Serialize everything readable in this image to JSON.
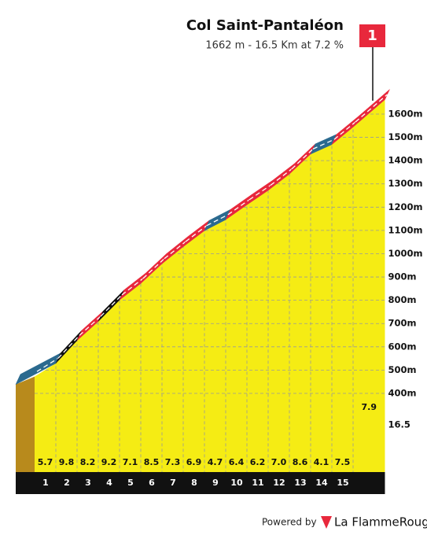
{
  "chart_data": {
    "type": "climb-profile",
    "title": "Col Saint-Pantaléon",
    "subtitle": "1662 m - 16.5 Km at 7.2 %",
    "flag": "1",
    "x": [
      0,
      1,
      2,
      3,
      4,
      5,
      6,
      7,
      8,
      9,
      10,
      11,
      12,
      13,
      14,
      15,
      16.5
    ],
    "values": [
      472,
      529,
      627,
      709,
      801,
      872,
      957,
      1030,
      1099,
      1146,
      1210,
      1272,
      1342,
      1428,
      1469,
      1544,
      1662
    ],
    "gradients": [
      5.7,
      9.8,
      8.2,
      9.2,
      7.1,
      8.5,
      7.3,
      6.9,
      4.7,
      6.4,
      6.2,
      7.0,
      8.6,
      4.1,
      7.5,
      7.9
    ],
    "gradient_labels": [
      "5.7",
      "9.8",
      "8.2",
      "9.2",
      "7.1",
      "8.5",
      "7.3",
      "6.9",
      "4.7",
      "6.4",
      "6.2",
      "7.0",
      "8.6",
      "4.1",
      "7.5",
      "7.9"
    ],
    "segment_colors": [
      "#2b6a8f",
      "#111111",
      "#e8283c",
      "#111111",
      "#e8283c",
      "#e8283c",
      "#e8283c",
      "#e8283c",
      "#2b6a8f",
      "#e8283c",
      "#e8283c",
      "#e8283c",
      "#e8283c",
      "#2b6a8f",
      "#e8283c",
      "#e8283c"
    ],
    "fill_color": "#f5ec14",
    "xlim": [
      0,
      16.5
    ],
    "xticks": [
      1,
      2,
      3,
      4,
      5,
      6,
      7,
      8,
      9,
      10,
      11,
      12,
      13,
      14,
      15,
      16.5
    ],
    "ylim": [
      0,
      1700
    ],
    "yticks": [
      {
        "value": 400,
        "label": "400m"
      },
      {
        "value": 500,
        "label": "500m"
      },
      {
        "value": 600,
        "label": "600m"
      },
      {
        "value": 700,
        "label": "700m"
      },
      {
        "value": 800,
        "label": "800m"
      },
      {
        "value": 900,
        "label": "900m"
      },
      {
        "value": 1000,
        "label": "1000m"
      },
      {
        "value": 1100,
        "label": "1100m"
      },
      {
        "value": 1200,
        "label": "1200m"
      },
      {
        "value": 1300,
        "label": "1300m"
      },
      {
        "value": 1400,
        "label": "1400m"
      },
      {
        "value": 1500,
        "label": "1500m"
      },
      {
        "value": 1600,
        "label": "1600m"
      }
    ],
    "grid": true
  },
  "footer": {
    "powered_by": "Powered by",
    "brand": "La FlammeRouge"
  }
}
